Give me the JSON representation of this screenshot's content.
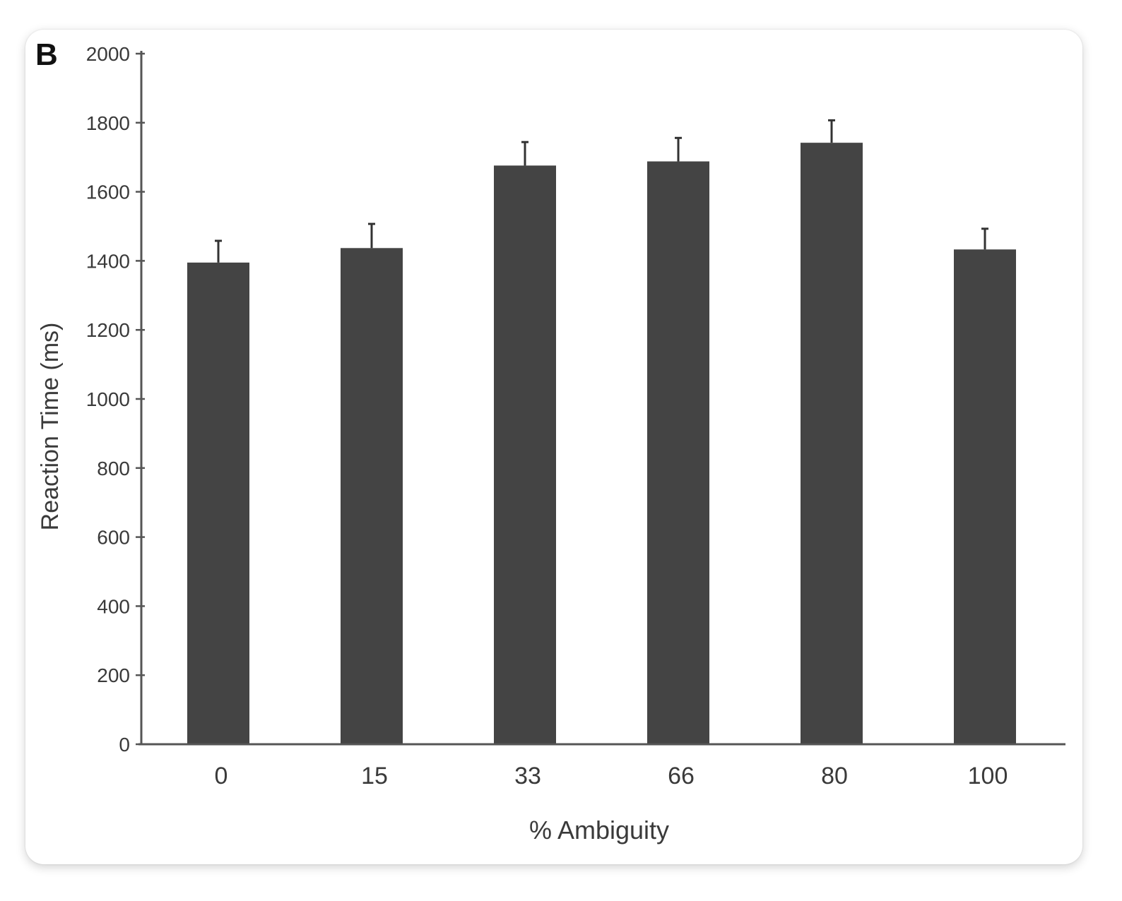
{
  "chart_data": {
    "type": "bar",
    "panel_label": "B",
    "categories": [
      "0",
      "15",
      "33",
      "66",
      "80",
      "100"
    ],
    "values": [
      1395,
      1437,
      1676,
      1688,
      1742,
      1433
    ],
    "errors": [
      63,
      70,
      68,
      68,
      65,
      60
    ],
    "xlabel": "% Ambiguity",
    "ylabel": "Reaction Time (ms)",
    "ylim": [
      0,
      2000
    ],
    "yticks": [
      "0",
      "200",
      "400",
      "600",
      "800",
      "1000",
      "1200",
      "1400",
      "1600",
      "1800",
      "2000"
    ],
    "grid": false,
    "bar_color": "#444444"
  }
}
